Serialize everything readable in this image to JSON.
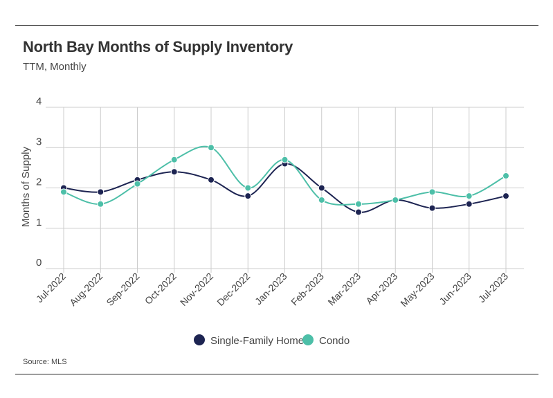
{
  "header": {
    "title": "North Bay Months of Supply Inventory",
    "subtitle": "TTM, Monthly"
  },
  "footer": {
    "source": "Source:  MLS"
  },
  "colors": {
    "single_family": "#1d2452",
    "condo": "#4dbfa8",
    "grid": "#cccccc"
  },
  "chart_data": {
    "type": "line",
    "smooth": true,
    "ylabel": "Months of Supply",
    "xlabel": "",
    "ylim": [
      0,
      4
    ],
    "yticks": [
      "0",
      "1",
      "2",
      "3",
      "4"
    ],
    "grid": true,
    "legend_position": "bottom-center",
    "categories": [
      "Jul-2022",
      "Aug-2022",
      "Sep-2022",
      "Oct-2022",
      "Nov-2022",
      "Dec-2022",
      "Jan-2023",
      "Feb-2023",
      "Mar-2023",
      "Apr-2023",
      "May-2023",
      "Jun-2023",
      "Jul-2023"
    ],
    "series": [
      {
        "name": "Single-Family Home",
        "color": "#1d2452",
        "values": [
          2.0,
          1.9,
          2.2,
          2.4,
          2.2,
          1.8,
          2.6,
          2.0,
          1.4,
          1.7,
          1.5,
          1.6,
          1.8
        ]
      },
      {
        "name": "Condo",
        "color": "#4dbfa8",
        "values": [
          1.9,
          1.6,
          2.1,
          2.7,
          3.0,
          2.0,
          2.7,
          1.7,
          1.6,
          1.7,
          1.9,
          1.8,
          2.3
        ]
      }
    ]
  }
}
